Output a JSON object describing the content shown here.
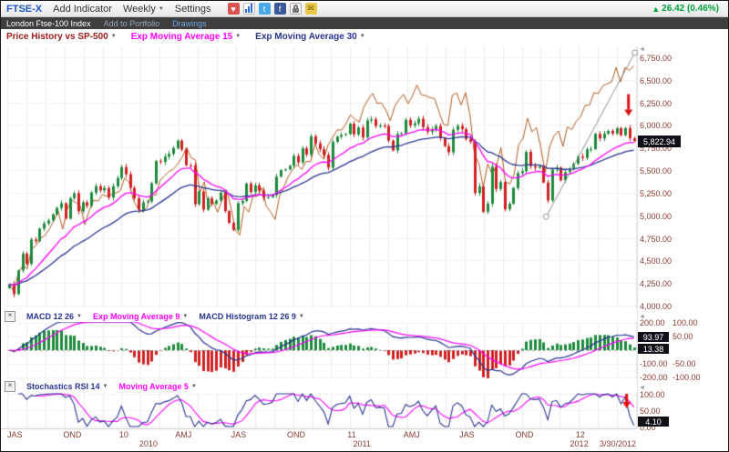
{
  "ui": {
    "dropdown_arrow": "▼",
    "collapse_arrow": "◄",
    "close_glyph": "×",
    "up_arrow": "▲",
    "heart_glyph": "♥",
    "twitter_glyph": "t",
    "facebook_glyph": "f",
    "mail_glyph": "✉"
  },
  "palette": {
    "candle_up": "#1d8a3c",
    "candle_down": "#d02020",
    "ema15": "#ff00ff",
    "ema30": "#283593",
    "sp500_line": "#b05a1e",
    "macd_line": "#283593",
    "signal_line": "#ff00ff",
    "hist_up": "#1d8a3c",
    "hist_down": "#d02020",
    "stoch_line": "#283593",
    "stoch_ma": "#ff00ff",
    "axis_text": "#8b3a2e",
    "change_green": "#00a33e",
    "annotation_red": "#e01010",
    "trendline_grey": "#909090",
    "grid": "#ebebeb"
  },
  "toolbar": {
    "symbol": "FTSE-X",
    "add_indicator": "Add Indicator",
    "timeframe": "Weekly",
    "settings": "Settings",
    "change": "26.42 (0.46%)"
  },
  "subheader": {
    "title": "London Ftse-100 Index",
    "add_to_portfolio": "Add to Portfolio",
    "drawings": "Drawings"
  },
  "legend": {
    "price_series": "Price History vs SP-500",
    "ema15": "Exp Moving Average 15",
    "ema30": "Exp Moving Average 30"
  },
  "price_axis": {
    "ticks": [
      "6,750.00",
      "6,500.00",
      "6,250.00",
      "6,000.00",
      "5,750.00",
      "5,500.00",
      "5,250.00",
      "5,000.00",
      "4,750.00",
      "4,500.00",
      "4,250.00",
      "4,000.00"
    ],
    "last_price_label": "5,822.94"
  },
  "macd_panel": {
    "label_macd": "MACD 12 26",
    "label_signal": "Exp Moving Average 9",
    "label_hist": "MACD Histogram 12 26 9",
    "axis_pairs": [
      [
        "200.00",
        "100.00"
      ],
      [
        "100.00",
        "50.00"
      ],
      [
        "-100.00",
        "-50.00"
      ],
      [
        "-200.00",
        "-100.00"
      ]
    ],
    "macd_value": "93.97",
    "hist_value": "13.38"
  },
  "stoch_panel": {
    "label_stoch": "Stochastics RSI 14",
    "label_ma": "Moving Average 5",
    "axis": [
      "100.00",
      "50.00",
      "0.00"
    ],
    "value": "4.10"
  },
  "xaxis": {
    "quarter_labels": [
      {
        "t": "JAS",
        "f": 0.0
      },
      {
        "t": "OND",
        "f": 0.089
      },
      {
        "t": "10",
        "f": 0.178
      },
      {
        "t": "AMJ",
        "f": 0.267
      },
      {
        "t": "JAS",
        "f": 0.356
      },
      {
        "t": "OND",
        "f": 0.445
      },
      {
        "t": "11",
        "f": 0.541
      },
      {
        "t": "AMJ",
        "f": 0.63
      },
      {
        "t": "JAS",
        "f": 0.719
      },
      {
        "t": "OND",
        "f": 0.808
      },
      {
        "t": "12",
        "f": 0.904
      }
    ],
    "year_labels": [
      {
        "t": "2010",
        "f": 0.21
      },
      {
        "t": "2011",
        "f": 0.55
      },
      {
        "t": "2012",
        "f": 0.895
      }
    ],
    "end_date": "3/30/2012"
  },
  "chart_data": [
    {
      "type": "candlestick",
      "title": "London FTSE-100 Index, weekly (values approximate, read from chart)",
      "ylim": [
        4000,
        6850
      ],
      "y_tick_step": 250,
      "last_close": 5822.94,
      "overlays": [
        {
          "name": "Exp Moving Average 15",
          "period": 15
        },
        {
          "name": "Exp Moving Average 30",
          "period": 30
        }
      ],
      "closes": [
        4236,
        4127,
        4389,
        4576,
        4462,
        4731,
        4714,
        4852,
        4909,
        4942,
        5011,
        5082,
        5134,
        4964,
        5190,
        5243,
        5044,
        5143,
        5104,
        5251,
        5323,
        5276,
        5301,
        5197,
        5322,
        5412,
        5534,
        5455,
        5303,
        5189,
        5061,
        5142,
        5153,
        5354,
        5600,
        5592,
        5650,
        5680,
        5744,
        5826,
        5728,
        5554,
        5553,
        5123,
        5263,
        5063,
        5188,
        5126,
        5164,
        5251,
        5046,
        4917,
        4838,
        5133,
        5158,
        5351,
        5258,
        5332,
        5275,
        5195,
        5202,
        5225,
        5428,
        5501,
        5509,
        5549,
        5657,
        5586,
        5741,
        5675,
        5875,
        5797,
        5732,
        5668,
        5528,
        5813,
        5871,
        5891,
        5899,
        6014,
        5896,
        5971,
        5862,
        6051,
        6063,
        5990,
        5994,
        5990,
        5828,
        5718,
        5900,
        5908,
        6056,
        5996,
        6018,
        6069,
        5976,
        5926,
        5948,
        5990,
        5855,
        5766,
        5698,
        5946,
        5990,
        5955,
        5845,
        5815,
        5247,
        5320,
        5040,
        5129,
        5539,
        5292,
        5368,
        5067,
        5128,
        5303,
        5466,
        5488,
        5702,
        5544,
        5527,
        5545,
        5363,
        5164,
        5505,
        5529,
        5387,
        5477,
        5512,
        5572,
        5650,
        5636,
        5729,
        5733,
        5901,
        5852,
        5905,
        5935,
        5905,
        5965,
        5887,
        5966,
        5854,
        5822.94
      ],
      "compare_series": {
        "name": "Price History vs SP-500 (S&P 500 weekly closes, scaled to match start)",
        "closes": [
          896,
          879,
          923,
          940,
          932,
          979,
          987,
          1004,
          1010,
          1026,
          1044,
          1068,
          1025,
          1071,
          1093,
          1087,
          1079,
          1036,
          1069,
          1093,
          1091,
          1106,
          1102,
          1106,
          1110,
          1115,
          1145,
          1136,
          1092,
          1074,
          1066,
          1075,
          1109,
          1104,
          1139,
          1150,
          1160,
          1166,
          1178,
          1194,
          1217,
          1192,
          1187,
          1111,
          1136,
          1074,
          1089,
          1065,
          1092,
          1118,
          1077,
          1023,
          1011,
          1078,
          1065,
          1102,
          1102,
          1122,
          1079,
          1065,
          1048,
          1104,
          1126,
          1149,
          1165,
          1176,
          1165,
          1184,
          1183,
          1226,
          1199,
          1189,
          1224,
          1240,
          1258,
          1257,
          1272,
          1293,
          1283,
          1276,
          1311,
          1329,
          1343,
          1320,
          1321,
          1304,
          1279,
          1313,
          1329,
          1341,
          1319,
          1337,
          1363,
          1340,
          1338,
          1333,
          1331,
          1300,
          1271,
          1268,
          1339,
          1344,
          1316,
          1345,
          1292,
          1200,
          1179,
          1123,
          1178,
          1154,
          1174,
          1216,
          1136,
          1131,
          1155,
          1224,
          1238,
          1285,
          1253,
          1263,
          1216,
          1158,
          1219,
          1244,
          1255,
          1219,
          1265,
          1258,
          1278,
          1289,
          1315,
          1316,
          1345,
          1343,
          1361,
          1366,
          1370,
          1404,
          1370,
          1404,
          1397,
          1408
        ]
      },
      "annotations": {
        "trendline": {
          "x1_frac": 0.857,
          "y1_value": 4985,
          "x2_frac": 0.998,
          "y2_value": 6800
        },
        "down_arrow": {
          "x_frac": 0.988,
          "y_value": 6100
        }
      }
    },
    {
      "type": "macd",
      "title": "MACD 12 26 with EMA 9 signal and histogram (derived from closes)",
      "derived_from": "chart_data[0].closes",
      "line_ylim": [
        -200,
        200
      ],
      "hist_ylim": [
        -100,
        100
      ],
      "last_macd": 93.97,
      "last_histogram": 13.38
    },
    {
      "type": "line",
      "title": "Stochastics RSI 14 with Moving Average 5 (derived from closes)",
      "derived_from": "chart_data[0].closes",
      "ylim": [
        0,
        100
      ],
      "last": 4.1,
      "annotations": {
        "down_arrow": {
          "x_frac": 0.985
        }
      }
    }
  ]
}
